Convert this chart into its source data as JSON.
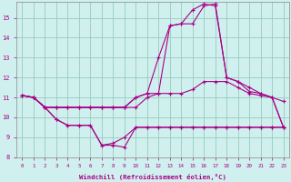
{
  "xlabel": "Windchill (Refroidissement éolien,°C)",
  "background_color": "#cff0ee",
  "grid_color": "#99ccbb",
  "line_color": "#aa0088",
  "hours": [
    0,
    1,
    2,
    3,
    4,
    5,
    6,
    7,
    8,
    9,
    10,
    11,
    12,
    13,
    14,
    15,
    16,
    17,
    18,
    19,
    20,
    21,
    22,
    23
  ],
  "line1": [
    11.1,
    11.0,
    10.5,
    9.9,
    9.6,
    9.6,
    9.6,
    8.6,
    8.6,
    8.5,
    9.5,
    9.5,
    9.5,
    9.5,
    9.5,
    9.5,
    9.5,
    9.5,
    9.5,
    9.5,
    9.5,
    9.5,
    9.5,
    9.5
  ],
  "line2": [
    11.1,
    11.0,
    10.5,
    9.9,
    9.6,
    9.6,
    9.6,
    8.6,
    8.7,
    9.0,
    9.5,
    9.5,
    9.5,
    9.5,
    9.5,
    9.5,
    9.5,
    9.5,
    9.5,
    9.5,
    9.5,
    9.5,
    9.5,
    9.5
  ],
  "line3": [
    11.1,
    11.0,
    10.5,
    10.5,
    10.5,
    10.5,
    10.5,
    10.5,
    10.5,
    10.5,
    10.5,
    11.0,
    11.2,
    11.2,
    11.2,
    11.4,
    11.8,
    11.8,
    11.8,
    11.5,
    11.2,
    11.1,
    11.0,
    10.8
  ],
  "line4": [
    11.1,
    11.0,
    10.5,
    10.5,
    10.5,
    10.5,
    10.5,
    10.5,
    10.5,
    10.5,
    11.0,
    11.2,
    13.0,
    14.6,
    14.7,
    14.7,
    15.6,
    15.7,
    12.0,
    11.8,
    11.3,
    11.2,
    11.0,
    9.5
  ],
  "line5": [
    11.1,
    11.0,
    10.5,
    10.5,
    10.5,
    10.5,
    10.5,
    10.5,
    10.5,
    10.5,
    11.0,
    11.2,
    11.2,
    14.6,
    14.7,
    15.4,
    15.7,
    15.6,
    12.0,
    11.8,
    11.5,
    11.2,
    11.0,
    9.5
  ],
  "ylim": [
    8.0,
    15.8
  ],
  "xlim": [
    -0.5,
    23.5
  ],
  "yticks": [
    8,
    9,
    10,
    11,
    12,
    13,
    14,
    15
  ],
  "xticks": [
    0,
    1,
    2,
    3,
    4,
    5,
    6,
    7,
    8,
    9,
    10,
    11,
    12,
    13,
    14,
    15,
    16,
    17,
    18,
    19,
    20,
    21,
    22,
    23
  ]
}
